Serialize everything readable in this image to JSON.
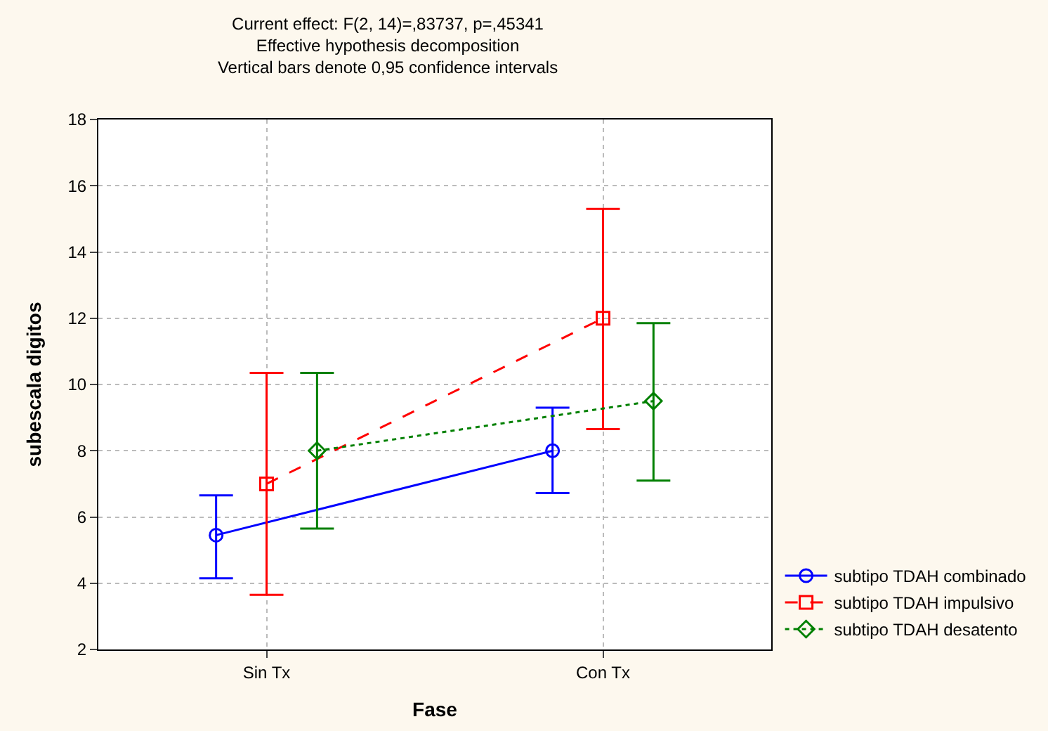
{
  "chart_data": {
    "type": "line",
    "title": "Current effect: F(2, 14)=,83737, p=,45341",
    "subtitle": "Effective hypothesis decomposition\nVertical bars denote 0,95 confidence intervals",
    "xlabel": "Fase",
    "ylabel": "subescala digitos",
    "categories": [
      "Sin Tx",
      "Con Tx"
    ],
    "series": [
      {
        "name": "subtipo TDAH combinado",
        "color": "#0000ff",
        "values": [
          5.45,
          8.0
        ],
        "errors": [
          [
            4.15,
            6.65
          ],
          [
            6.72,
            9.3
          ]
        ],
        "marker": "circle",
        "line_style": "solid"
      },
      {
        "name": "subtipo TDAH impulsivo",
        "color": "#ff0000",
        "values": [
          7.0,
          12.0
        ],
        "errors": [
          [
            3.65,
            10.35
          ],
          [
            8.65,
            15.3
          ]
        ],
        "marker": "square",
        "line_style": "dashed"
      },
      {
        "name": "subtipo TDAH desatento",
        "color": "#008000",
        "values": [
          8.0,
          9.5
        ],
        "errors": [
          [
            5.65,
            10.35
          ],
          [
            7.1,
            11.85
          ]
        ],
        "marker": "diamond",
        "line_style": "dotted"
      }
    ],
    "ylim": [
      2,
      18
    ],
    "yticks": [
      2,
      4,
      6,
      8,
      10,
      12,
      14,
      16,
      18
    ],
    "grid": true,
    "legend": "right"
  }
}
